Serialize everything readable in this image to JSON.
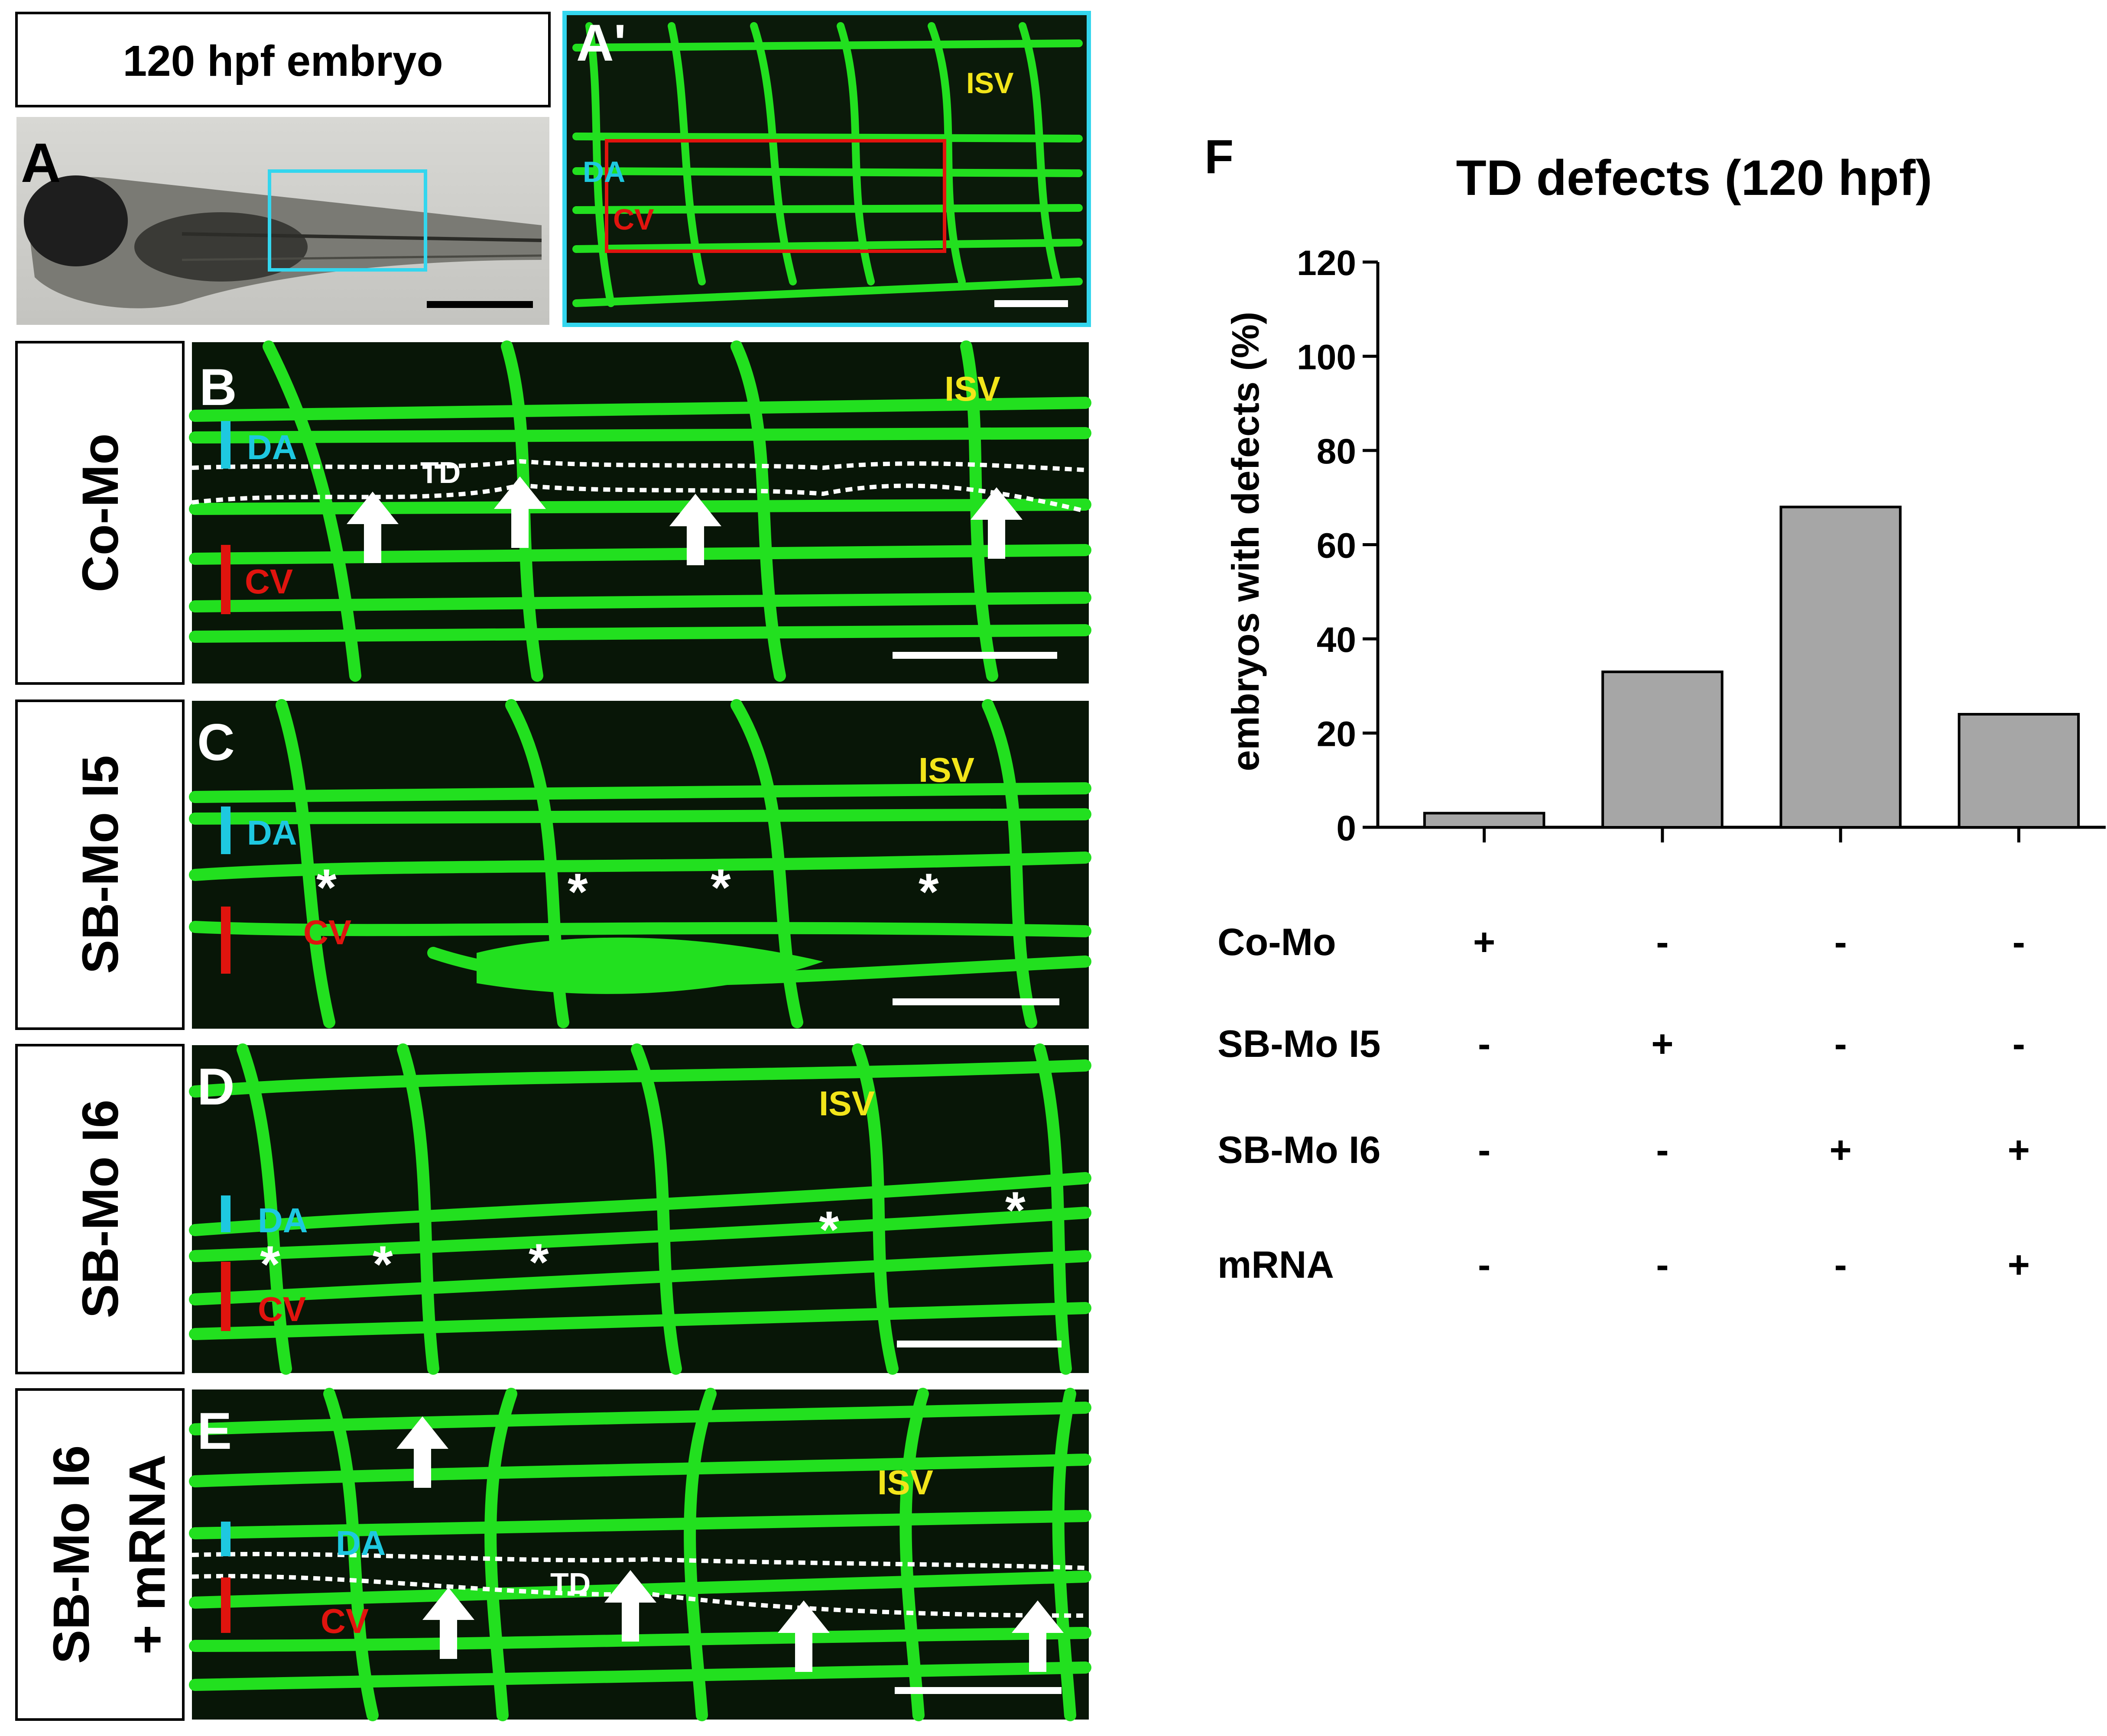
{
  "header": {
    "title": "120 hpf embryo"
  },
  "panels": {
    "A": {
      "letter": "A"
    },
    "A2": {
      "letter": "A'",
      "isv": "ISV",
      "da": "DA",
      "cv": "CV"
    },
    "B": {
      "letter": "B",
      "side_label": "Co-Mo",
      "da": "DA",
      "cv": "CV",
      "isv": "ISV",
      "td": "TD"
    },
    "C": {
      "letter": "C",
      "side_label": "SB-Mo I5",
      "da": "DA",
      "cv": "CV",
      "isv": "ISV"
    },
    "D": {
      "letter": "D",
      "side_label": "SB-Mo I6",
      "da": "DA",
      "cv": "CV",
      "isv": "ISV"
    },
    "E": {
      "letter": "E",
      "side_label": "SB-Mo I6",
      "side_label_2": "+ mRNA",
      "da": "DA",
      "cv": "CV",
      "isv": "ISV",
      "td": "TD"
    },
    "F": {
      "letter": "F"
    }
  },
  "colors": {
    "vessel_green": "#22e01f",
    "da_cyan": "#1ec8e0",
    "cv_red": "#e0140e",
    "isv_yellow": "#f2e51a",
    "frame_cyan": "#33d6ee",
    "bar_gray": "#a6a6a6"
  },
  "chart_data": {
    "type": "bar",
    "title": "TD defects (120 hpf)",
    "ylabel": "embryos with defects (%)",
    "xlabel": "",
    "ylim": [
      0,
      120
    ],
    "yticks": [
      0,
      20,
      40,
      60,
      80,
      100,
      120
    ],
    "categories": [
      "Co-Mo",
      "SB-Mo I5",
      "SB-Mo I6",
      "SB-Mo I6 + mRNA"
    ],
    "values": [
      3,
      33,
      68,
      24
    ],
    "grid": false,
    "condition_table": {
      "rows": [
        {
          "label": "Co-Mo",
          "marks": [
            "+",
            "-",
            "-",
            "-"
          ]
        },
        {
          "label": "SB-Mo I5",
          "marks": [
            "-",
            "+",
            "-",
            "-"
          ]
        },
        {
          "label": "SB-Mo I6",
          "marks": [
            "-",
            "-",
            "+",
            "+"
          ]
        },
        {
          "label": "mRNA",
          "marks": [
            "-",
            "-",
            "-",
            "+"
          ]
        }
      ]
    }
  }
}
